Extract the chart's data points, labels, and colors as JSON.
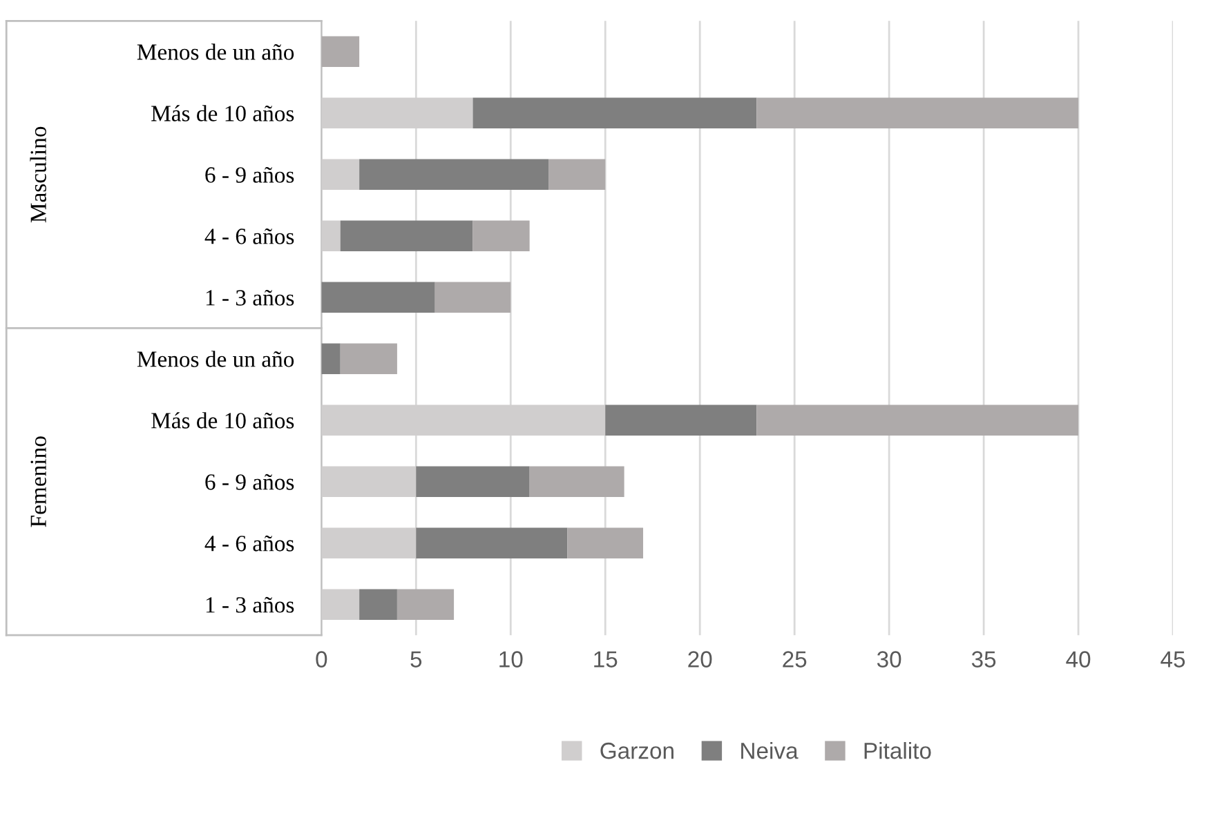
{
  "chart_data": {
    "type": "bar",
    "orientation": "horizontal",
    "stacked": true,
    "categories": [
      "Menos de un año",
      "Más de 10 años",
      "6 - 9 años",
      "4 - 6 años",
      "1 - 3 años",
      "Menos de un año",
      "Más de 10 años",
      "6 - 9 años",
      "4 - 6 años",
      "1 - 3 años"
    ],
    "series": [
      {
        "name": "Garzon",
        "color": "#d0cece",
        "values": [
          0,
          8,
          2,
          1,
          0,
          0,
          15,
          5,
          5,
          2
        ]
      },
      {
        "name": "Neiva",
        "color": "#7f7f7f",
        "values": [
          0,
          15,
          10,
          7,
          6,
          1,
          8,
          6,
          8,
          2
        ]
      },
      {
        "name": "Pitalito",
        "color": "#aeaaaa",
        "values": [
          2,
          17,
          3,
          3,
          4,
          3,
          17,
          5,
          4,
          3
        ]
      }
    ],
    "annotations": [
      "Masculino",
      "Femenino"
    ],
    "xlim": [
      0,
      45
    ],
    "xticks": [
      0,
      5,
      10,
      15,
      20,
      25,
      30,
      35,
      40,
      45
    ],
    "grid": "x",
    "legend": "bottom"
  }
}
